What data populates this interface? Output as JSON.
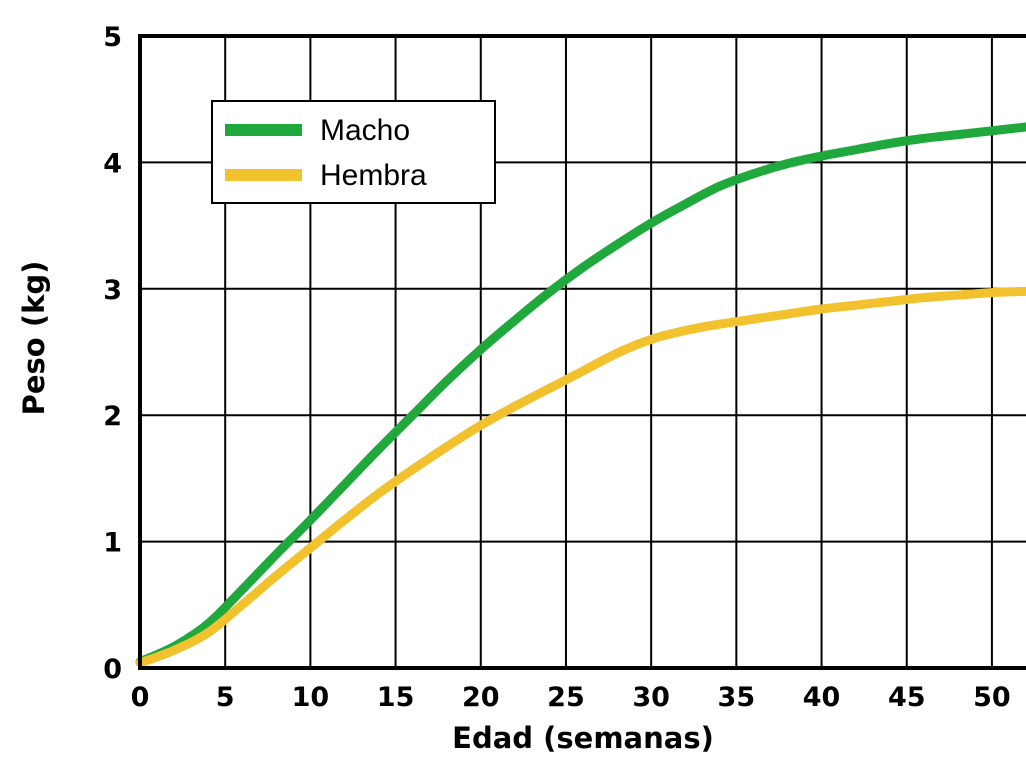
{
  "chart_data": {
    "type": "line",
    "title": "",
    "xlabel": "Edad (semanas)",
    "ylabel": "Peso (kg)",
    "xlim": [
      0,
      52
    ],
    "ylim": [
      0,
      5
    ],
    "xticks": [
      0,
      5,
      10,
      15,
      20,
      25,
      30,
      35,
      40,
      45,
      50
    ],
    "xtick_labels": [
      "0",
      "5",
      "10",
      "15",
      "20",
      "25",
      "30",
      "35",
      "40",
      "45",
      "50"
    ],
    "yticks": [
      0,
      1,
      2,
      3,
      4,
      5
    ],
    "ytick_labels": [
      "0",
      "1",
      "2",
      "3",
      "4",
      "5"
    ],
    "grid": true,
    "legend_position": "top-left",
    "series": [
      {
        "name": "Macho",
        "color": "#1fa83c",
        "x": [
          0,
          2,
          4,
          6,
          8,
          10,
          12,
          14,
          16,
          18,
          20,
          22,
          24,
          26,
          28,
          30,
          32,
          34,
          36,
          38,
          40,
          42,
          44,
          46,
          48,
          50,
          52
        ],
        "y": [
          0.05,
          0.17,
          0.35,
          0.62,
          0.9,
          1.17,
          1.45,
          1.73,
          2.0,
          2.27,
          2.52,
          2.75,
          2.97,
          3.17,
          3.35,
          3.52,
          3.67,
          3.81,
          3.91,
          3.99,
          4.05,
          4.1,
          4.15,
          4.19,
          4.22,
          4.25,
          4.28
        ]
      },
      {
        "name": "Hembra",
        "color": "#f2c12e",
        "x": [
          0,
          2,
          4,
          6,
          8,
          10,
          12,
          14,
          16,
          18,
          20,
          22,
          24,
          26,
          28,
          30,
          32,
          34,
          36,
          38,
          40,
          42,
          44,
          46,
          48,
          50,
          52
        ],
        "y": [
          0.04,
          0.14,
          0.28,
          0.5,
          0.73,
          0.95,
          1.17,
          1.38,
          1.57,
          1.75,
          1.92,
          2.07,
          2.21,
          2.35,
          2.49,
          2.6,
          2.67,
          2.72,
          2.76,
          2.8,
          2.84,
          2.87,
          2.9,
          2.93,
          2.95,
          2.97,
          2.98
        ]
      }
    ]
  }
}
